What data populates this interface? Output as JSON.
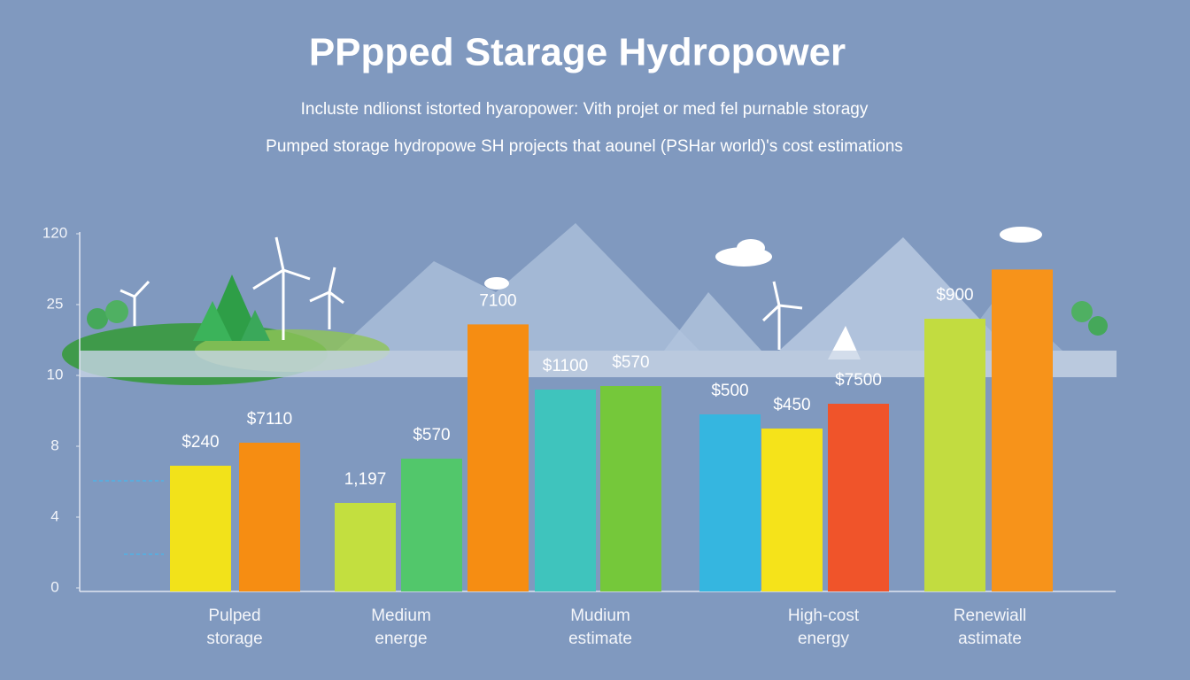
{
  "chart_data": {
    "type": "grouped-bar",
    "title": "PPpped Starage Hydropower",
    "subtitles": [
      "Incluste ndlionst istorted hyaropower: Vith projet or med fel purnable storagy",
      "Pumped storage hydropowe SH projects that aounel (PSHar world)'s cost estimations"
    ],
    "yticks": [
      0,
      4,
      8,
      10,
      25,
      120
    ],
    "ylim": [
      0,
      120
    ],
    "groups": [
      {
        "label": [
          "Pulped",
          "storage"
        ],
        "bars": [
          {
            "value": 6.9,
            "color": "#f2e21a",
            "annotation": "$240"
          },
          {
            "value": 8.1,
            "color": "#f68d12",
            "annotation": "$7110"
          }
        ]
      },
      {
        "label": [
          "Medium",
          "energe"
        ],
        "bars": [
          {
            "value": 4.8,
            "color": "#c3df3f",
            "annotation": "1,197"
          },
          {
            "value": 7.3,
            "color": "#52c76b",
            "annotation": "$570"
          }
        ]
      },
      {
        "label": [
          "Mudium",
          "estimate"
        ],
        "bars": [
          {
            "value": 20.8,
            "color": "#f68d12",
            "annotation": "7100"
          },
          {
            "value": 9.6,
            "color": "#3fc4bd",
            "annotation": "$1100"
          },
          {
            "value": 9.7,
            "color": "#75c83a",
            "annotation": "$570"
          }
        ]
      },
      {
        "label": [
          "High-cost",
          "energy"
        ],
        "bars": [
          {
            "value": 8.9,
            "color": "#35b6e0",
            "annotation": "$500"
          },
          {
            "value": 8.5,
            "color": "#f5e31a",
            "annotation": "$450"
          },
          {
            "value": 9.2,
            "color": "#f0542a",
            "annotation": "$7500"
          }
        ]
      },
      {
        "label": [
          "Renewiall",
          "astimate"
        ],
        "bars": [
          {
            "value": 22,
            "color": "#c2dc40",
            "annotation": "$900"
          },
          {
            "value": 72,
            "color": "#f7931a",
            "annotation": null
          }
        ]
      }
    ]
  }
}
